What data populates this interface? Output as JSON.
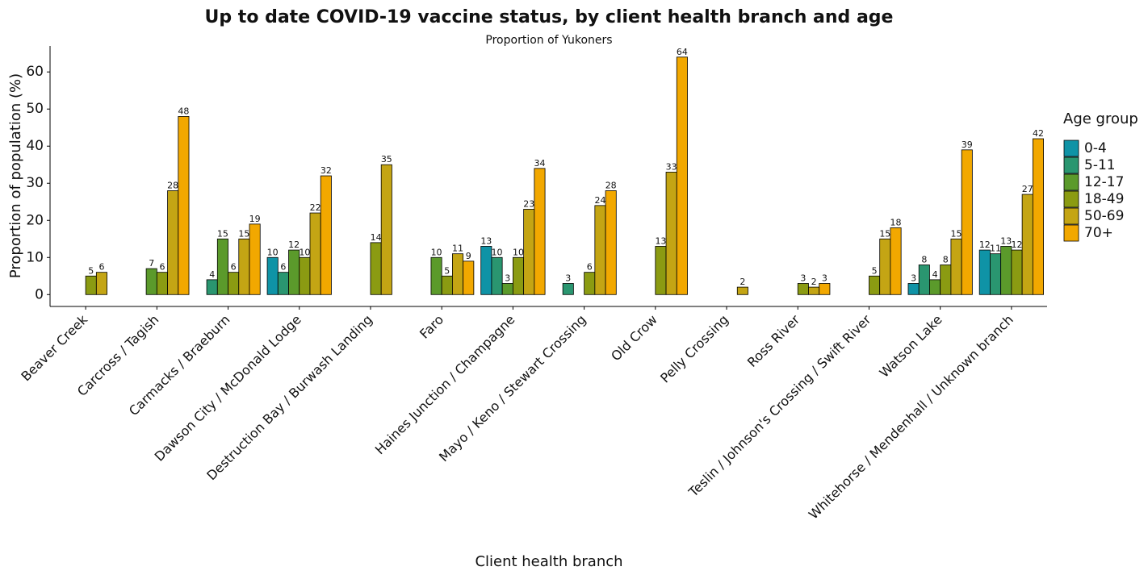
{
  "chart_data": {
    "type": "bar",
    "title": "Up to date COVID-19 vaccine status, by client health branch and age",
    "subtitle": "Proportion of Yukoners",
    "x_label": "Client health branch",
    "y_label": "Proportion of population (%)",
    "legend_title": "Age group",
    "categories": [
      "Beaver Creek",
      "Carcross / Tagish",
      "Carmacks / Braeburn",
      "Dawson City / McDonald Lodge",
      "Destruction Bay / Burwash Landing",
      "Faro",
      "Haines Junction / Champagne",
      "Mayo / Keno / Stewart Crossing",
      "Old Crow",
      "Pelly Crossing",
      "Ross River",
      "Teslin / Johnson's Crossing / Swift River",
      "Watson Lake",
      "Whitehorse / Mendenhall / Unknown branch"
    ],
    "series": [
      {
        "name": "0-4",
        "color": "#0f93a6",
        "values": [
          null,
          null,
          null,
          10,
          null,
          null,
          13,
          null,
          null,
          null,
          null,
          null,
          3,
          12
        ]
      },
      {
        "name": "5-11",
        "color": "#2a9670",
        "values": [
          null,
          null,
          4,
          6,
          null,
          null,
          10,
          3,
          null,
          null,
          null,
          null,
          8,
          11
        ]
      },
      {
        "name": "12-17",
        "color": "#5b9a2b",
        "values": [
          null,
          7,
          15,
          12,
          null,
          10,
          3,
          null,
          null,
          null,
          null,
          null,
          4,
          13
        ]
      },
      {
        "name": "18-49",
        "color": "#8b9b12",
        "values": [
          5,
          6,
          6,
          10,
          14,
          5,
          10,
          6,
          13,
          null,
          3,
          5,
          8,
          12
        ]
      },
      {
        "name": "50-69",
        "color": "#c4a514",
        "values": [
          6,
          28,
          15,
          22,
          35,
          11,
          23,
          24,
          33,
          2,
          2,
          15,
          15,
          27
        ]
      },
      {
        "name": "70+",
        "color": "#f2a800",
        "values": [
          null,
          48,
          19,
          32,
          null,
          9,
          34,
          28,
          64,
          null,
          3,
          18,
          39,
          42
        ]
      }
    ],
    "ylim": [
      -3.2,
      67
    ],
    "yticks": [
      0,
      10,
      20,
      30,
      40,
      50,
      60
    ],
    "grid": false
  }
}
